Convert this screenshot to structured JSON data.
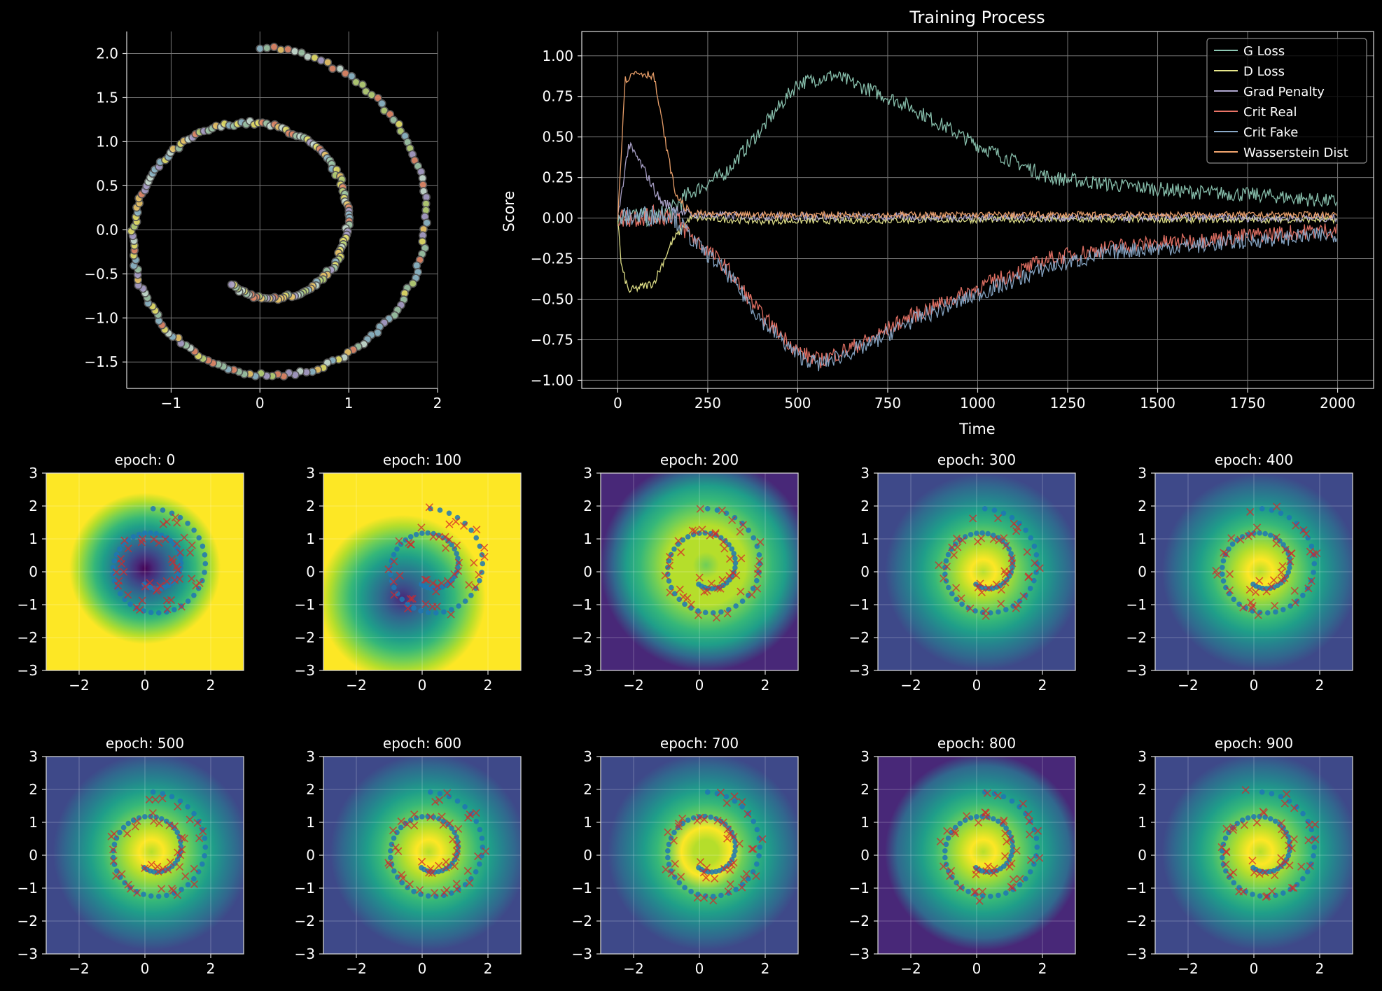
{
  "chart_data": [
    {
      "id": "spiral",
      "type": "scatter",
      "title": "",
      "xlabel": "",
      "ylabel": "",
      "xlim": [
        -1.5,
        2.0
      ],
      "ylim": [
        -1.8,
        2.25
      ],
      "xticks": [
        -1,
        0,
        1,
        2
      ],
      "yticks": [
        -1.5,
        -1.0,
        -0.5,
        0.0,
        0.5,
        1.0,
        1.5,
        2.0
      ],
      "grid": true,
      "point_colors": [
        "#e5e06b",
        "#9fc7a8",
        "#b9d37a",
        "#a9a0c9",
        "#e28a6a",
        "#c9ded2",
        "#e9c46a",
        "#8fb8c9"
      ],
      "spiral": {
        "theta_start": 0.0,
        "theta_end": 9.9,
        "r_start": 2.08,
        "r_end": 0.7,
        "center": [
          0.0,
          0.0
        ],
        "points": 260
      }
    },
    {
      "id": "training",
      "type": "line",
      "title": "Training Process",
      "xlabel": "Time",
      "ylabel": "Score",
      "xlim": [
        -100,
        2100
      ],
      "ylim": [
        -1.05,
        1.15
      ],
      "xticks": [
        0,
        250,
        500,
        750,
        1000,
        1250,
        1500,
        1750,
        2000
      ],
      "yticks": [
        -1.0,
        -0.75,
        -0.5,
        -0.25,
        0.0,
        0.25,
        0.5,
        0.75,
        1.0
      ],
      "grid": true,
      "legend": "top-right",
      "series": [
        {
          "name": "G Loss",
          "color": "#8dc7b3",
          "x": [
            0,
            30,
            100,
            150,
            200,
            300,
            400,
            500,
            600,
            800,
            1000,
            1200,
            1400,
            1600,
            1800,
            2000
          ],
          "y": [
            0.0,
            0.02,
            0.0,
            0.05,
            0.15,
            0.28,
            0.55,
            0.83,
            0.88,
            0.7,
            0.45,
            0.25,
            0.2,
            0.16,
            0.14,
            0.1
          ]
        },
        {
          "name": "D Loss",
          "color": "#e8e88c",
          "x": [
            0,
            10,
            30,
            100,
            150,
            200,
            400,
            1000,
            2000
          ],
          "y": [
            0.0,
            -0.3,
            -0.45,
            -0.4,
            -0.15,
            0.0,
            -0.02,
            -0.01,
            -0.01
          ]
        },
        {
          "name": "Grad Penalty",
          "color": "#b0a8d0",
          "x": [
            0,
            30,
            60,
            120,
            200,
            400,
            1000,
            2000
          ],
          "y": [
            0.0,
            0.45,
            0.35,
            0.1,
            0.02,
            0.01,
            0.005,
            0.0
          ]
        },
        {
          "name": "Crit Real",
          "color": "#ea7467",
          "x": [
            0,
            150,
            200,
            300,
            400,
            500,
            560,
            700,
            800,
            1000,
            1200,
            1400,
            1600,
            1800,
            2000
          ],
          "y": [
            0.0,
            0.02,
            -0.1,
            -0.3,
            -0.6,
            -0.82,
            -0.88,
            -0.75,
            -0.62,
            -0.43,
            -0.25,
            -0.17,
            -0.14,
            -0.1,
            -0.07
          ]
        },
        {
          "name": "Crit Fake",
          "color": "#8aaac9",
          "x": [
            0,
            150,
            200,
            300,
            400,
            500,
            560,
            700,
            800,
            1000,
            1200,
            1400,
            1600,
            1800,
            2000
          ],
          "y": [
            0.0,
            0.03,
            -0.12,
            -0.33,
            -0.63,
            -0.85,
            -0.9,
            -0.78,
            -0.65,
            -0.47,
            -0.3,
            -0.2,
            -0.17,
            -0.13,
            -0.1
          ]
        },
        {
          "name": "Wasserstein Dist",
          "color": "#f2a56e",
          "x": [
            0,
            20,
            50,
            100,
            130,
            160,
            200,
            300,
            1000,
            2000
          ],
          "y": [
            0.0,
            0.85,
            0.9,
            0.88,
            0.5,
            0.15,
            0.03,
            0.02,
            0.02,
            0.02
          ]
        }
      ]
    },
    {
      "id": "epochs",
      "type": "heatmap",
      "xlim": [
        -3,
        3
      ],
      "ylim": [
        -3,
        3
      ],
      "xticks": [
        -2,
        0,
        2
      ],
      "yticks": [
        -3,
        -2,
        -1,
        0,
        1,
        2,
        3
      ],
      "grid": true,
      "real_marker_color": "#1f77b4",
      "fake_marker_color": "#d62728",
      "colormap": [
        "#440154",
        "#482878",
        "#3e4989",
        "#31688e",
        "#26828e",
        "#1f9e89",
        "#35b779",
        "#6ece58",
        "#b5de2b",
        "#fde725"
      ],
      "panels": [
        {
          "title": "epoch: 0"
        },
        {
          "title": "epoch: 100"
        },
        {
          "title": "epoch: 200"
        },
        {
          "title": "epoch: 300"
        },
        {
          "title": "epoch: 400"
        },
        {
          "title": "epoch: 500"
        },
        {
          "title": "epoch: 600"
        },
        {
          "title": "epoch: 700"
        },
        {
          "title": "epoch: 800"
        },
        {
          "title": "epoch: 900"
        }
      ]
    }
  ]
}
